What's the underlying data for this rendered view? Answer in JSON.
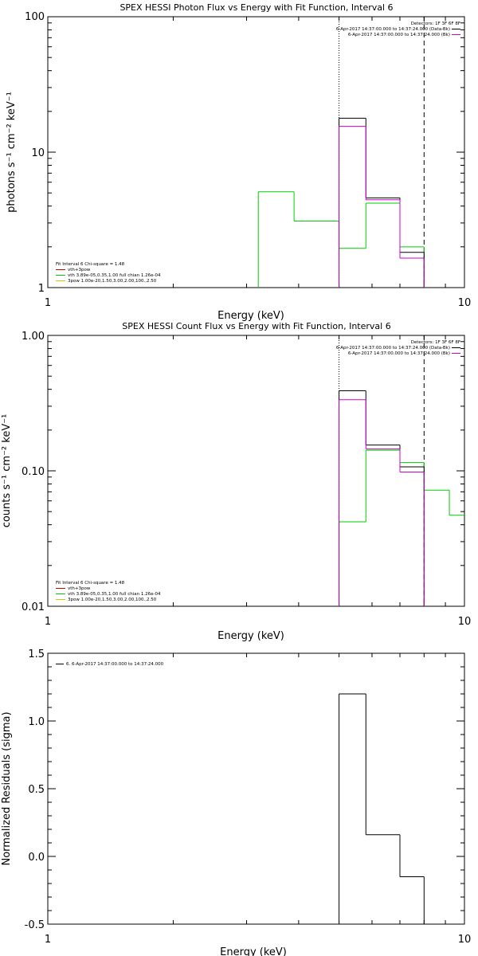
{
  "chart_data": [
    {
      "type": "line",
      "title": "SPEX HESSI Photon Flux vs Energy with Fit Function, Interval 6",
      "xlabel": "Energy (keV)",
      "ylabel": "photons s⁻¹ cm⁻² keV⁻¹",
      "xscale": "log",
      "yscale": "log",
      "xlim": [
        1,
        10
      ],
      "ylim": [
        1,
        100
      ],
      "xticks": [
        "1",
        "10"
      ],
      "yticks": [
        "1",
        "10",
        "100"
      ],
      "vlines": [
        {
          "x": 5.0,
          "style": "dotted"
        },
        {
          "x": 8.0,
          "style": "dashed"
        }
      ],
      "topright": [
        {
          "text": "Detectors: 1F 3F 6F 8F",
          "color": ""
        },
        {
          "text": "6-Apr-2017 14:37:00.000 to 14:37:24.000 (Data-Bk)",
          "color": "#000000"
        },
        {
          "text": "6-Apr-2017 14:37:00.000 to 14:37:24.000 (Bk)",
          "color": "#cc00cc"
        }
      ],
      "fit_info": [
        {
          "text": "Fit Interval 6   Chi-square = 1.48",
          "color": ""
        },
        {
          "text": "vth+3pow",
          "color": "#cc0000"
        },
        {
          "text": "vth 3.89e-05,0.35,1.00  full chian 1.26e-04",
          "color": "#00cc00"
        },
        {
          "text": "3pow 1.00e-20,1.50,3.00,2.00,100.,2.50",
          "color": "#cccc00"
        }
      ],
      "series": [
        {
          "color": "#00cc00",
          "bins": [
            [
              3.2,
              3.9,
              5.1
            ],
            [
              3.9,
              5.0,
              3.1
            ],
            [
              5.0,
              5.8,
              1.95
            ],
            [
              5.8,
              7.0,
              4.2
            ],
            [
              7.0,
              8.0,
              2.0
            ]
          ],
          "drop": [
            [
              3.2,
              1
            ],
            [
              8.0,
              1
            ]
          ]
        },
        {
          "color": "#000000",
          "bins": [
            [
              5.0,
              5.8,
              17.8
            ],
            [
              5.8,
              7.0,
              4.6
            ],
            [
              7.0,
              8.0,
              1.82
            ]
          ],
          "drop": [
            [
              5.0,
              1
            ],
            [
              8.0,
              1
            ]
          ]
        },
        {
          "color": "#cc00cc",
          "bins": [
            [
              5.0,
              5.8,
              15.5
            ],
            [
              5.8,
              7.0,
              4.45
            ],
            [
              7.0,
              8.0,
              1.65
            ]
          ],
          "drop": [
            [
              5.0,
              1
            ],
            [
              8.0,
              1
            ]
          ]
        }
      ]
    },
    {
      "type": "line",
      "title": "SPEX HESSI Count Flux vs Energy with Fit Function, Interval 6",
      "xlabel": "Energy (keV)",
      "ylabel": "counts s⁻¹ cm⁻² keV⁻¹",
      "xscale": "log",
      "yscale": "log",
      "xlim": [
        1,
        10
      ],
      "ylim": [
        0.01,
        1.0
      ],
      "xticks": [
        "1",
        "10"
      ],
      "yticks": [
        "0.01",
        "0.10",
        "1.00"
      ],
      "vlines": [
        {
          "x": 5.0,
          "style": "dotted"
        },
        {
          "x": 8.0,
          "style": "dashed"
        }
      ],
      "topright": [
        {
          "text": "Detectors: 1F 3F 6F 8F",
          "color": ""
        },
        {
          "text": "6-Apr-2017 14:37:00.000 to 14:37:24.000 (Data-Bk)",
          "color": "#000000"
        },
        {
          "text": "6-Apr-2017 14:37:00.000 to 14:37:24.000 (Bk)",
          "color": "#cc00cc"
        }
      ],
      "fit_info": [
        {
          "text": "Fit Interval 6   Chi-square = 1.48",
          "color": ""
        },
        {
          "text": "vth+3pow",
          "color": "#cc0000"
        },
        {
          "text": "vth 3.89e-05,0.35,1.00  full chian 1.26e-04",
          "color": "#00cc00"
        },
        {
          "text": "3pow 1.00e-20,1.50,3.00,2.00,100.,2.50",
          "color": "#cccc00"
        }
      ],
      "series": [
        {
          "color": "#00cc00",
          "bins": [
            [
              5.0,
              5.8,
              0.042
            ],
            [
              5.8,
              7.0,
              0.142
            ],
            [
              7.0,
              8.0,
              0.115
            ],
            [
              8.0,
              9.2,
              0.072
            ],
            [
              9.2,
              10.0,
              0.047
            ]
          ],
          "drop": [
            [
              5.0,
              0.01
            ]
          ]
        },
        {
          "color": "#000000",
          "bins": [
            [
              5.0,
              5.8,
              0.39
            ],
            [
              5.8,
              7.0,
              0.155
            ],
            [
              7.0,
              8.0,
              0.107
            ]
          ],
          "drop": [
            [
              5.0,
              0.01
            ],
            [
              8.0,
              0.01
            ]
          ]
        },
        {
          "color": "#cc00cc",
          "bins": [
            [
              5.0,
              5.8,
              0.335
            ],
            [
              5.8,
              7.0,
              0.145
            ],
            [
              7.0,
              8.0,
              0.098
            ]
          ],
          "drop": [
            [
              5.0,
              0.01
            ],
            [
              8.0,
              0.01
            ]
          ]
        }
      ]
    },
    {
      "type": "line",
      "title": "",
      "xlabel": "Energy (keV)",
      "ylabel": "Normalized Residuals (sigma)",
      "xscale": "log",
      "yscale": "linear",
      "xlim": [
        1,
        10
      ],
      "ylim": [
        -0.5,
        1.5
      ],
      "xticks": [
        "1",
        "10"
      ],
      "yticks": [
        "-0.5",
        "0.0",
        "0.5",
        "1.0",
        "1.5"
      ],
      "legend": "6. 6-Apr-2017 14:37:00.000 to 14:37:24.000",
      "series": [
        {
          "color": "#000000",
          "bins": [
            [
              5.0,
              5.8,
              1.2
            ],
            [
              5.8,
              7.0,
              0.16
            ],
            [
              7.0,
              8.0,
              -0.15
            ]
          ],
          "drop": [
            [
              5.0,
              -0.5
            ],
            [
              8.0,
              -0.5
            ]
          ]
        }
      ]
    }
  ]
}
